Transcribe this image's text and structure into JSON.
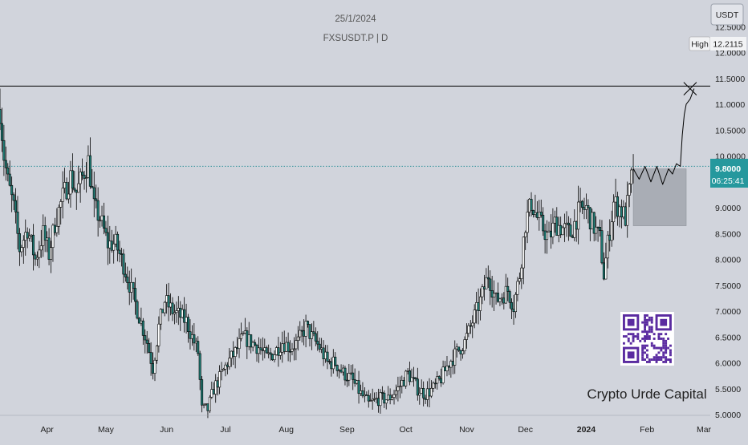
{
  "header": {
    "date": "25/1/2024",
    "symbol": "FXSUSDT.P | D"
  },
  "price_axis": {
    "currency_label": "USDT",
    "ticks": [
      "12.5000",
      "12.0000",
      "11.5000",
      "11.0000",
      "10.5000",
      "10.0000",
      "9.0000",
      "8.5000",
      "8.0000",
      "7.5000",
      "7.0000",
      "6.5000",
      "6.0000",
      "5.5000",
      "5.0000"
    ],
    "high_label": "High",
    "high_value": "12.2115",
    "last_price": "9.8000",
    "countdown": "06:25:41"
  },
  "time_axis": {
    "labels": [
      "Apr",
      "May",
      "Jun",
      "Jul",
      "Aug",
      "Sep",
      "Oct",
      "Nov",
      "Dec",
      "2024",
      "Feb",
      "Mar"
    ]
  },
  "watermark": {
    "text": "Crypto Urde Capital"
  },
  "colors": {
    "background": "#d1d4dc",
    "candle": "#000000",
    "bull_body": "#ffffff",
    "bear_body": "#1e7d76",
    "last_price_line": "#2c8f96",
    "last_price_badge": "#25989d",
    "resistance_line": "#000000",
    "projection_box": "#a9adb5",
    "qr_dark": "#5a2ba0"
  },
  "chart_data": {
    "type": "candlestick",
    "title": "FXSUSDT.P | D",
    "ylim": [
      5.0,
      12.65
    ],
    "yticks": [
      5.0,
      5.5,
      6.0,
      6.5,
      7.0,
      7.5,
      8.0,
      8.5,
      9.0,
      9.5,
      10.0,
      10.5,
      11.0,
      11.5,
      12.0,
      12.5
    ],
    "x_range": [
      "2023-03-08",
      "2024-03-01"
    ],
    "xticks": [
      "2023-04-01",
      "2023-05-01",
      "2023-06-01",
      "2023-07-01",
      "2023-08-01",
      "2023-09-01",
      "2023-10-01",
      "2023-11-01",
      "2023-12-01",
      "2024-01-01",
      "2024-02-01",
      "2024-03-01"
    ],
    "last_price": 9.8,
    "resistance_level": 11.35,
    "close_path": [
      [
        "2023-03-08",
        10.9
      ],
      [
        "2023-03-10",
        10.0
      ],
      [
        "2023-03-12",
        9.5
      ],
      [
        "2023-03-15",
        9.0
      ],
      [
        "2023-03-18",
        8.2
      ],
      [
        "2023-03-22",
        8.6
      ],
      [
        "2023-03-26",
        8.0
      ],
      [
        "2023-03-30",
        8.5
      ],
      [
        "2023-04-02",
        8.1
      ],
      [
        "2023-04-05",
        8.7
      ],
      [
        "2023-04-09",
        9.2
      ],
      [
        "2023-04-13",
        9.6
      ],
      [
        "2023-04-16",
        9.3
      ],
      [
        "2023-04-19",
        9.6
      ],
      [
        "2023-04-22",
        9.9
      ],
      [
        "2023-04-25",
        9.0
      ],
      [
        "2023-04-28",
        8.8
      ],
      [
        "2023-05-02",
        8.3
      ],
      [
        "2023-05-06",
        8.3
      ],
      [
        "2023-05-10",
        7.9
      ],
      [
        "2023-05-14",
        7.4
      ],
      [
        "2023-05-18",
        6.9
      ],
      [
        "2023-05-22",
        6.4
      ],
      [
        "2023-05-25",
        5.9
      ],
      [
        "2023-05-28",
        6.7
      ],
      [
        "2023-05-31",
        7.2
      ],
      [
        "2023-06-04",
        7.0
      ],
      [
        "2023-06-08",
        6.9
      ],
      [
        "2023-06-11",
        6.8
      ],
      [
        "2023-06-14",
        6.5
      ],
      [
        "2023-06-17",
        6.2
      ],
      [
        "2023-06-19",
        5.1
      ],
      [
        "2023-06-22",
        5.1
      ],
      [
        "2023-06-25",
        5.5
      ],
      [
        "2023-06-28",
        5.7
      ],
      [
        "2023-07-02",
        6.0
      ],
      [
        "2023-07-06",
        6.2
      ],
      [
        "2023-07-10",
        6.5
      ],
      [
        "2023-07-14",
        6.4
      ],
      [
        "2023-07-18",
        6.3
      ],
      [
        "2023-07-22",
        6.1
      ],
      [
        "2023-07-26",
        6.2
      ],
      [
        "2023-07-30",
        6.4
      ],
      [
        "2023-08-03",
        6.3
      ],
      [
        "2023-08-07",
        6.4
      ],
      [
        "2023-08-11",
        6.7
      ],
      [
        "2023-08-14",
        6.5
      ],
      [
        "2023-08-18",
        6.3
      ],
      [
        "2023-08-22",
        6.0
      ],
      [
        "2023-08-26",
        6.0
      ],
      [
        "2023-08-30",
        5.8
      ],
      [
        "2023-09-03",
        5.7
      ],
      [
        "2023-09-08",
        5.4
      ],
      [
        "2023-09-12",
        5.2
      ],
      [
        "2023-09-17",
        5.3
      ],
      [
        "2023-09-22",
        5.3
      ],
      [
        "2023-09-27",
        5.5
      ],
      [
        "2023-10-02",
        5.8
      ],
      [
        "2023-10-07",
        5.5
      ],
      [
        "2023-10-11",
        5.4
      ],
      [
        "2023-10-15",
        5.5
      ],
      [
        "2023-10-19",
        5.7
      ],
      [
        "2023-10-23",
        6.0
      ],
      [
        "2023-10-27",
        6.2
      ],
      [
        "2023-10-31",
        6.4
      ],
      [
        "2023-11-04",
        6.8
      ],
      [
        "2023-11-08",
        7.2
      ],
      [
        "2023-11-12",
        7.7
      ],
      [
        "2023-11-16",
        7.2
      ],
      [
        "2023-11-19",
        7.3
      ],
      [
        "2023-11-22",
        7.4
      ],
      [
        "2023-11-25",
        7.1
      ],
      [
        "2023-11-28",
        7.7
      ],
      [
        "2023-12-01",
        8.7
      ],
      [
        "2023-12-04",
        9.1
      ],
      [
        "2023-12-07",
        8.8
      ],
      [
        "2023-12-10",
        8.6
      ],
      [
        "2023-12-13",
        8.4
      ],
      [
        "2023-12-16",
        8.7
      ],
      [
        "2023-12-20",
        8.6
      ],
      [
        "2023-12-24",
        8.5
      ],
      [
        "2023-12-28",
        8.9
      ],
      [
        "2024-01-01",
        9.0
      ],
      [
        "2024-01-04",
        8.7
      ],
      [
        "2024-01-08",
        8.4
      ],
      [
        "2024-01-10",
        7.7
      ],
      [
        "2024-01-12",
        8.3
      ],
      [
        "2024-01-15",
        9.1
      ],
      [
        "2024-01-18",
        9.0
      ],
      [
        "2024-01-21",
        8.8
      ],
      [
        "2024-01-23",
        9.3
      ],
      [
        "2024-01-25",
        9.8
      ]
    ],
    "projection_box": {
      "from": "2024-01-25",
      "to": "2024-02-21",
      "top": 9.75,
      "bottom": 8.65
    },
    "projection_path": [
      [
        "2024-01-25",
        9.75
      ],
      [
        "2024-01-28",
        9.55
      ],
      [
        "2024-01-31",
        9.8
      ],
      [
        "2024-02-03",
        9.5
      ],
      [
        "2024-02-06",
        9.8
      ],
      [
        "2024-02-09",
        9.45
      ],
      [
        "2024-02-12",
        9.75
      ],
      [
        "2024-02-14",
        9.65
      ],
      [
        "2024-02-16",
        9.85
      ],
      [
        "2024-02-18",
        9.8
      ],
      [
        "2024-02-19",
        10.4
      ],
      [
        "2024-02-20",
        10.8
      ],
      [
        "2024-02-21",
        11.0
      ],
      [
        "2024-02-23",
        11.1
      ],
      [
        "2024-02-25",
        11.3
      ]
    ],
    "target_marker": {
      "date": "2024-02-23",
      "value": 11.3
    }
  }
}
